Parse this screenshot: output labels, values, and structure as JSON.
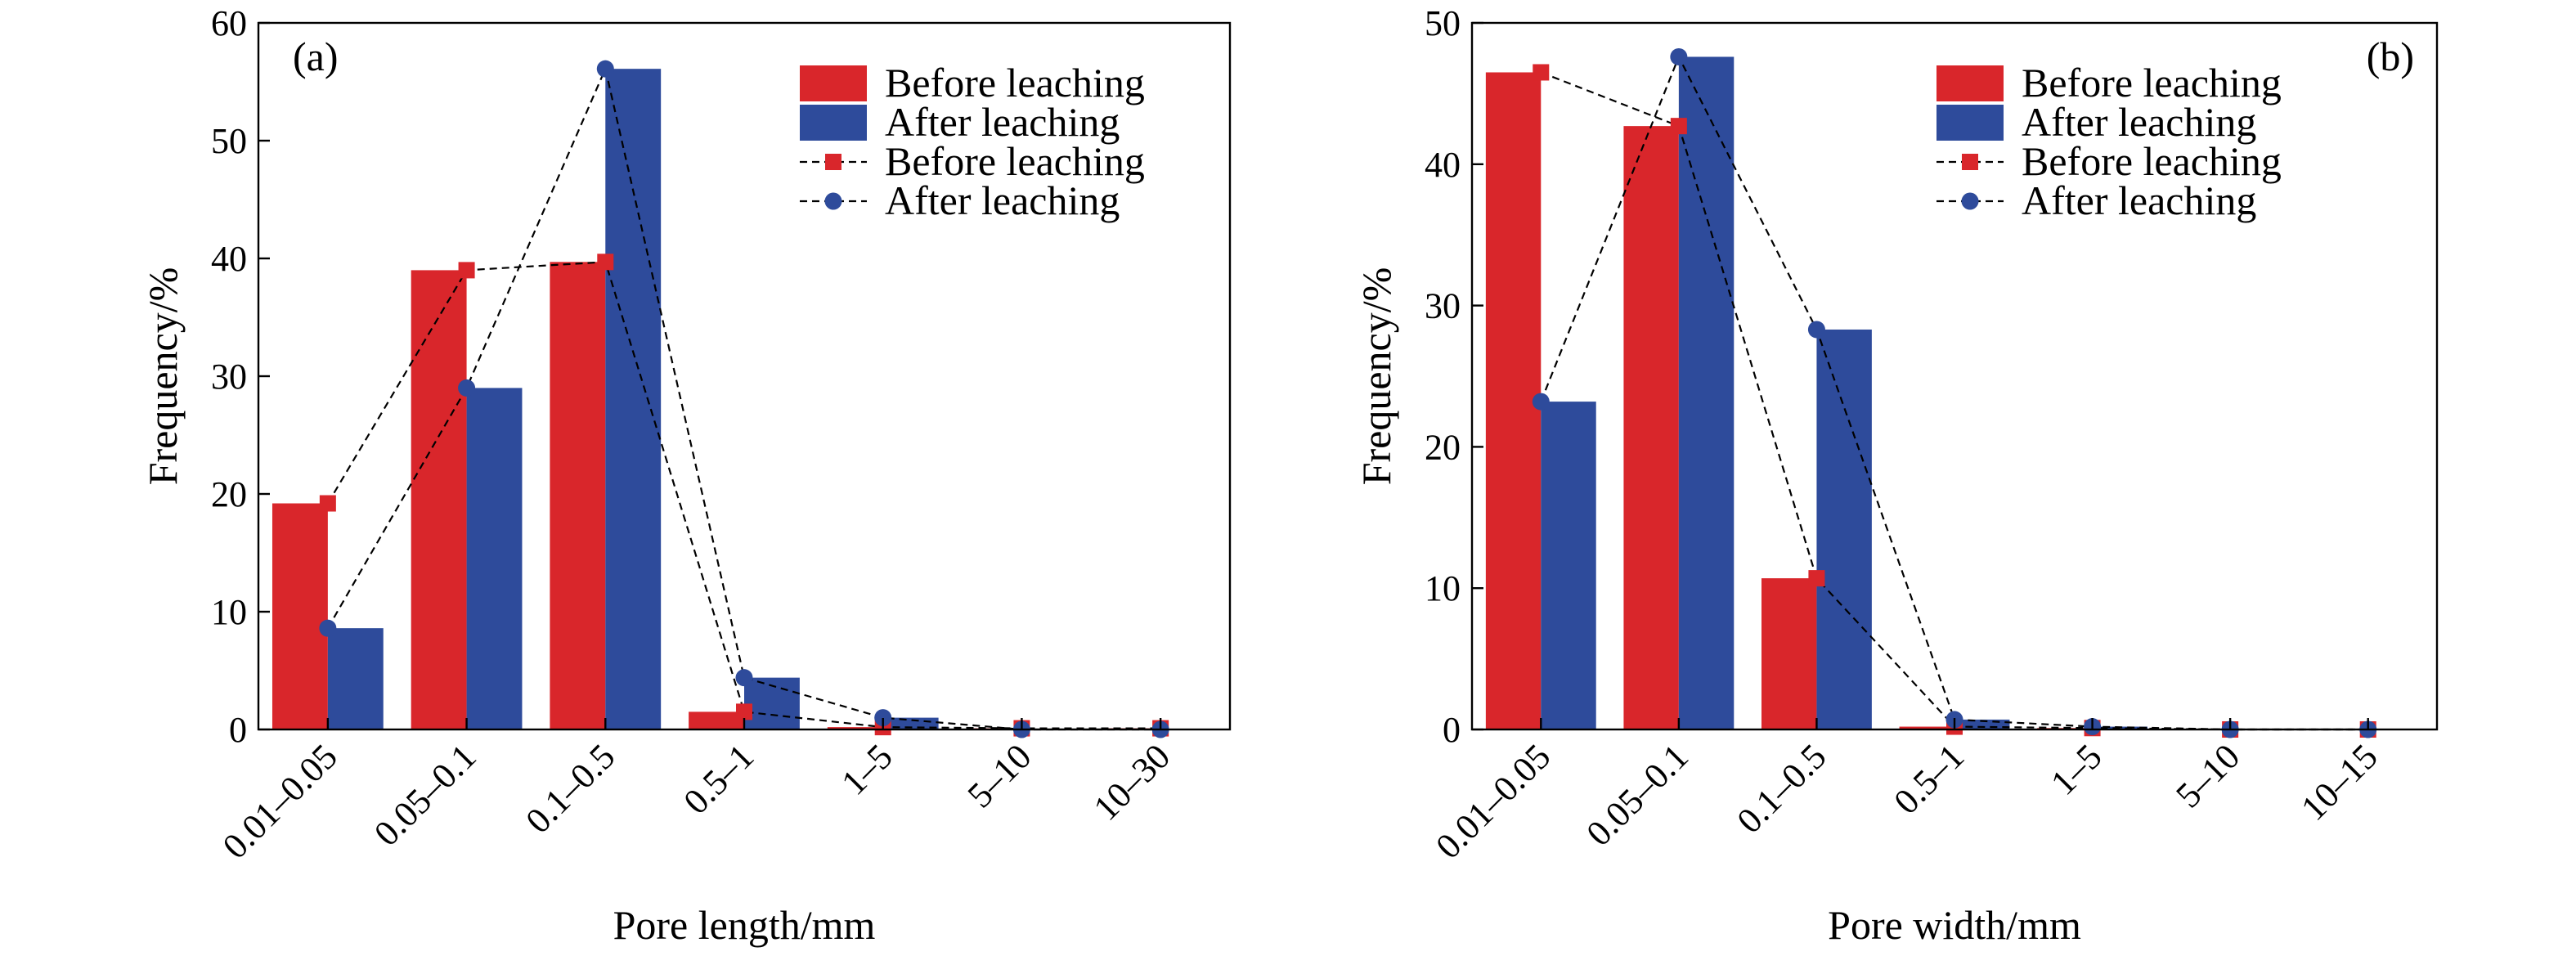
{
  "colors": {
    "before": "#d9262b",
    "after": "#2e4b9b",
    "before_hex_label": "red",
    "after_hex_label": "blue"
  },
  "chart_data": [
    {
      "type": "bar",
      "panel_label": "(a)",
      "xlabel": "Pore length/mm",
      "ylabel": "Frequency/%",
      "ylim": [
        0,
        60
      ],
      "yticks": [
        0,
        10,
        20,
        30,
        40,
        50,
        60
      ],
      "categories": [
        "0.01–0.05",
        "0.05–0.1",
        "0.1–0.5",
        "0.5–1",
        "1–5",
        "5–10",
        "10–30"
      ],
      "series": [
        {
          "name": "Before leaching",
          "kind": "bar",
          "color_key": "before",
          "values": [
            19.2,
            39.0,
            39.7,
            1.5,
            0.2,
            0.1,
            0.1
          ]
        },
        {
          "name": "After leaching",
          "kind": "bar",
          "color_key": "after",
          "values": [
            8.6,
            29.0,
            56.1,
            4.4,
            1.0,
            0.0,
            0.0
          ]
        },
        {
          "name": "Before leaching",
          "kind": "line",
          "marker": "square",
          "color_key": "before",
          "values": [
            19.2,
            39.0,
            39.7,
            1.5,
            0.2,
            0.1,
            0.1
          ]
        },
        {
          "name": "After leaching",
          "kind": "line",
          "marker": "circle",
          "color_key": "after",
          "values": [
            8.6,
            29.0,
            56.1,
            4.4,
            1.0,
            0.0,
            0.0
          ]
        }
      ],
      "legend_position": "top-right",
      "grid": false
    },
    {
      "type": "bar",
      "panel_label": "(b)",
      "xlabel": "Pore width/mm",
      "ylabel": "Frequency/%",
      "ylim": [
        0,
        50
      ],
      "yticks": [
        0,
        10,
        20,
        30,
        40,
        50
      ],
      "categories": [
        "0.01–0.05",
        "0.05–0.1",
        "0.1–0.5",
        "0.5–1",
        "1–5",
        "5–10",
        "10–15"
      ],
      "series": [
        {
          "name": "Before leaching",
          "kind": "bar",
          "color_key": "before",
          "values": [
            46.5,
            42.7,
            10.7,
            0.2,
            0.1,
            0.0,
            0.0
          ]
        },
        {
          "name": "After leaching",
          "kind": "bar",
          "color_key": "after",
          "values": [
            23.2,
            47.6,
            28.3,
            0.7,
            0.2,
            0.0,
            0.0
          ]
        },
        {
          "name": "Before leaching",
          "kind": "line",
          "marker": "square",
          "color_key": "before",
          "values": [
            46.5,
            42.7,
            10.7,
            0.2,
            0.1,
            0.0,
            0.0
          ]
        },
        {
          "name": "After leaching",
          "kind": "line",
          "marker": "circle",
          "color_key": "after",
          "values": [
            23.2,
            47.6,
            28.3,
            0.7,
            0.2,
            0.0,
            0.0
          ]
        }
      ],
      "legend_position": "top-left",
      "grid": false
    }
  ]
}
